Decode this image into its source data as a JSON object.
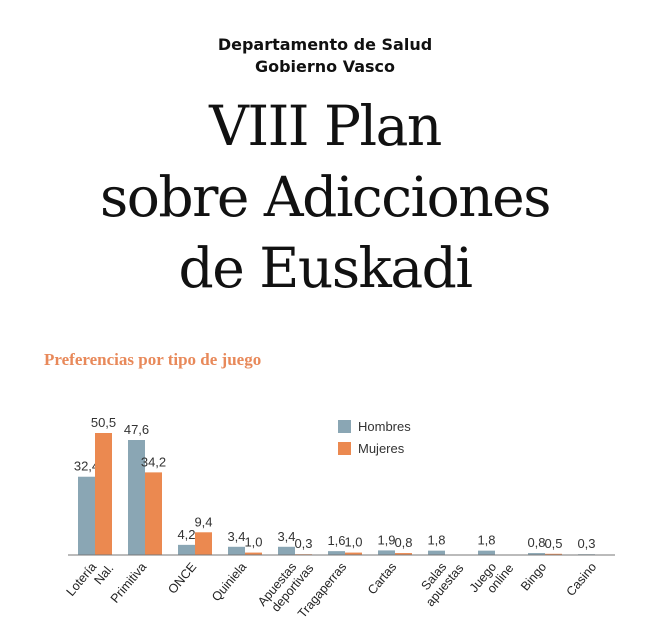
{
  "header": {
    "org_line1": "Departamento de Salud",
    "org_line2": "Gobierno Vasco",
    "title_line1": "VIII Plan",
    "title_line2": "sobre Adicciones",
    "title_line3": "de Euskadi"
  },
  "colors": {
    "hombres": "#8aa6b4",
    "mujeres": "#eb8950",
    "title_accent": "#e8895a"
  },
  "chart_data": {
    "type": "bar",
    "title": "Preferencias por tipo de juego",
    "categories": [
      [
        "Lotería",
        "Nal."
      ],
      [
        "Primitiva"
      ],
      [
        "ONCE"
      ],
      [
        "Quiniela"
      ],
      [
        "Apuestas",
        "deportivas"
      ],
      [
        "Tragaperras"
      ],
      [
        "Cartas"
      ],
      [
        "Salas",
        "apuestas"
      ],
      [
        "Juego",
        "online"
      ],
      [
        "Bingo"
      ],
      [
        "Casino"
      ]
    ],
    "series": [
      {
        "name": "Hombres",
        "values": [
          32.4,
          47.6,
          4.2,
          3.4,
          3.4,
          1.6,
          1.9,
          1.8,
          1.8,
          0.8,
          0.3
        ],
        "labels": [
          "32,4",
          "47,6",
          "4,2",
          "3,4",
          "3,4",
          "1,6",
          "1,9",
          "1,8",
          "1,8",
          "0,8",
          "0,3"
        ]
      },
      {
        "name": "Mujeres",
        "values": [
          50.5,
          34.2,
          9.4,
          1.0,
          0.3,
          1.0,
          0.8,
          null,
          null,
          0.5,
          null
        ],
        "labels": [
          "50,5",
          "34,2",
          "9,4",
          "1,0",
          "0,3",
          "1,0",
          "0,8",
          null,
          null,
          "0,5",
          null
        ]
      }
    ],
    "legend": {
      "position": "top-right"
    },
    "ylim": [
      0,
      52
    ],
    "grid": false
  }
}
